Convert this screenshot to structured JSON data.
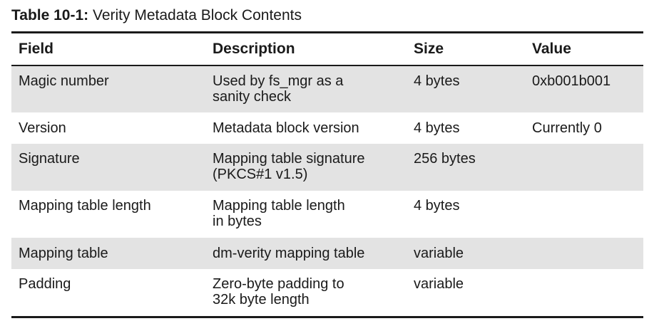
{
  "caption": {
    "label": "Table 10-1:",
    "title": "Verity Metadata Block Contents"
  },
  "table": {
    "headers": [
      "Field",
      "Description",
      "Size",
      "Value"
    ],
    "rows": [
      {
        "field": "Magic number",
        "description": [
          "Used by fs_mgr as a",
          "sanity check"
        ],
        "size": "4 bytes",
        "value": "0xb001b001"
      },
      {
        "field": "Version",
        "description": [
          "Metadata block version"
        ],
        "size": "4 bytes",
        "value": "Currently 0"
      },
      {
        "field": "Signature",
        "description": [
          "Mapping table signature",
          "(PKCS#1 v1.5)"
        ],
        "size": "256 bytes",
        "value": ""
      },
      {
        "field": "Mapping table length",
        "description": [
          "Mapping table length",
          "in bytes"
        ],
        "size": "4 bytes",
        "value": ""
      },
      {
        "field": "Mapping table",
        "description": [
          "dm-verity mapping table"
        ],
        "size": "variable",
        "value": ""
      },
      {
        "field": "Padding",
        "description": [
          "Zero-byte padding to",
          "32k byte length"
        ],
        "size": "variable",
        "value": ""
      }
    ]
  }
}
